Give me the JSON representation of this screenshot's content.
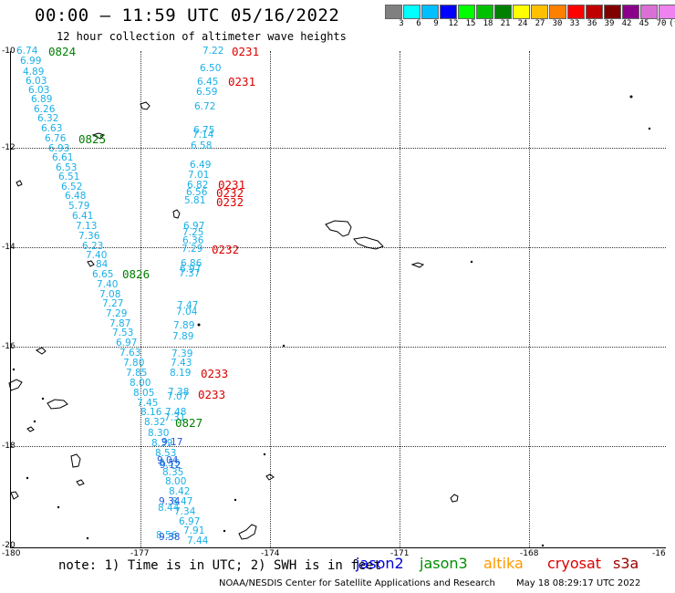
{
  "title": "00:00 – 11:59 UTC 05/16/2022",
  "subtitle": "12 hour collection of altimeter wave heights",
  "colorbar": {
    "colors": [
      "#808080",
      "#00ffff",
      "#00bfff",
      "#0000ff",
      "#00ff00",
      "#00c000",
      "#008000",
      "#ffff00",
      "#ffc000",
      "#ff8000",
      "#ff0000",
      "#c00000",
      "#800000",
      "#8b008b",
      "#da70d6",
      "#ee82ee",
      "#000000"
    ],
    "labels": [
      "3",
      "6",
      "9",
      "12",
      "15",
      "18",
      "21",
      "24",
      "27",
      "30",
      "33",
      "36",
      "39",
      "42",
      "45",
      "70",
      "(ft)"
    ]
  },
  "axes": {
    "lon_ticks": [
      "-180",
      "-177",
      "-174",
      "-171",
      "-168",
      "-16"
    ],
    "lat_ticks": [
      "-10",
      "-12",
      "-14",
      "-16",
      "-18",
      "-20"
    ]
  },
  "observations": [
    {
      "text": "6.74",
      "color": "#1ab0e8"
    },
    {
      "text": "6.99",
      "color": "#1ab0e8"
    },
    {
      "text": "4.89",
      "color": "#1ab0e8"
    },
    {
      "text": "6.03",
      "color": "#1ab0e8"
    },
    {
      "text": "6.03",
      "color": "#1ab0e8"
    },
    {
      "text": "6.89",
      "color": "#1ab0e8"
    },
    {
      "text": "6.26",
      "color": "#1ab0e8"
    },
    {
      "text": "6.32",
      "color": "#1ab0e8"
    },
    {
      "text": "6.63",
      "color": "#1ab0e8"
    },
    {
      "text": "6.76",
      "color": "#1ab0e8"
    },
    {
      "text": "6.93",
      "color": "#1ab0e8"
    },
    {
      "text": "6.61",
      "color": "#1ab0e8"
    },
    {
      "text": "6.53",
      "color": "#1ab0e8"
    },
    {
      "text": "6.51",
      "color": "#1ab0e8"
    },
    {
      "text": "6.52",
      "color": "#1ab0e8"
    },
    {
      "text": "6.48",
      "color": "#1ab0e8"
    },
    {
      "text": "5.79",
      "color": "#1ab0e8"
    },
    {
      "text": "6.41",
      "color": "#1ab0e8"
    },
    {
      "text": "7.13",
      "color": "#1ab0e8"
    },
    {
      "text": "7.36",
      "color": "#1ab0e8"
    },
    {
      "text": "6.23",
      "color": "#1ab0e8"
    },
    {
      "text": "7.40",
      "color": "#1ab0e8"
    },
    {
      "text": "84",
      "color": "#1ab0e8"
    },
    {
      "text": "6.65",
      "color": "#1ab0e8"
    },
    {
      "text": "7.40",
      "color": "#1ab0e8"
    },
    {
      "text": "7.08",
      "color": "#1ab0e8"
    },
    {
      "text": "7.27",
      "color": "#1ab0e8"
    },
    {
      "text": "7.29",
      "color": "#1ab0e8"
    },
    {
      "text": "7.87",
      "color": "#1ab0e8"
    },
    {
      "text": "7.53",
      "color": "#1ab0e8"
    },
    {
      "text": "6.97",
      "color": "#1ab0e8"
    },
    {
      "text": "7.63",
      "color": "#1ab0e8"
    },
    {
      "text": "7.80",
      "color": "#1ab0e8"
    },
    {
      "text": "7.85",
      "color": "#1ab0e8"
    },
    {
      "text": "8.00",
      "color": "#1ab0e8"
    },
    {
      "text": "8.05",
      "color": "#1ab0e8"
    },
    {
      "text": "7.45",
      "color": "#1ab0e8"
    },
    {
      "text": "8.16",
      "color": "#1ab0e8"
    },
    {
      "text": "8.32",
      "color": "#1ab0e8"
    },
    {
      "text": "8.30",
      "color": "#1ab0e8"
    },
    {
      "text": "8.39",
      "color": "#1ab0e8"
    },
    {
      "text": "8.53",
      "color": "#1ab0e8"
    },
    {
      "text": "8.55",
      "color": "#1ab0e8"
    },
    {
      "text": "8.00",
      "color": "#1ab0e8"
    },
    {
      "text": "8.42",
      "color": "#1ab0e8"
    },
    {
      "text": "8.47",
      "color": "#1ab0e8"
    },
    {
      "text": "7.34",
      "color": "#1ab0e8"
    },
    {
      "text": "6.97",
      "color": "#1ab0e8"
    },
    {
      "text": "7.91",
      "color": "#1ab0e8"
    },
    {
      "text": "7.44",
      "color": "#1ab0e8"
    },
    {
      "text": "7.22",
      "color": "#1ab0e8"
    },
    {
      "text": "6.50",
      "color": "#1ab0e8"
    },
    {
      "text": "6.45",
      "color": "#1ab0e8"
    },
    {
      "text": "6.59",
      "color": "#1ab0e8"
    },
    {
      "text": "6.72",
      "color": "#1ab0e8"
    },
    {
      "text": "6.75",
      "color": "#1ab0e8"
    },
    {
      "text": "7.14",
      "color": "#1ab0e8"
    },
    {
      "text": "6.58",
      "color": "#1ab0e8"
    },
    {
      "text": "6.49",
      "color": "#1ab0e8"
    },
    {
      "text": "7.01",
      "color": "#1ab0e8"
    },
    {
      "text": "6.82",
      "color": "#1ab0e8"
    },
    {
      "text": "6.56",
      "color": "#1ab0e8"
    },
    {
      "text": "5.81",
      "color": "#1ab0e8"
    },
    {
      "text": "6.97",
      "color": "#1ab0e8"
    },
    {
      "text": "7.25",
      "color": "#1ab0e8"
    },
    {
      "text": "6.36",
      "color": "#1ab0e8"
    },
    {
      "text": "7.29",
      "color": "#1ab0e8"
    },
    {
      "text": "6.86",
      "color": "#1ab0e8"
    },
    {
      "text": "6.97",
      "color": "#1ab0e8"
    },
    {
      "text": "7.37",
      "color": "#1ab0e8"
    },
    {
      "text": "7.47",
      "color": "#1ab0e8"
    },
    {
      "text": "7.04",
      "color": "#1ab0e8"
    },
    {
      "text": "7.89",
      "color": "#1ab0e8"
    },
    {
      "text": "7.89",
      "color": "#1ab0e8"
    },
    {
      "text": "7.39",
      "color": "#1ab0e8"
    },
    {
      "text": "7.43",
      "color": "#1ab0e8"
    },
    {
      "text": "8.19",
      "color": "#1ab0e8"
    },
    {
      "text": "7.38",
      "color": "#1ab0e8"
    },
    {
      "text": "7.07",
      "color": "#1ab0e8"
    },
    {
      "text": "7.48",
      "color": "#1ab0e8"
    },
    {
      "text": "7.31",
      "color": "#1ab0e8"
    },
    {
      "text": "9.17",
      "color": "#2255dd"
    },
    {
      "text": "9.04",
      "color": "#2255dd"
    },
    {
      "text": "9.12",
      "color": "#2255dd"
    },
    {
      "text": "8.35",
      "color": "#1ab0e8"
    },
    {
      "text": "9.34",
      "color": "#2255dd"
    },
    {
      "text": "8.44",
      "color": "#1ab0e8"
    },
    {
      "text": "8.56",
      "color": "#1ab0e8"
    },
    {
      "text": "9.38",
      "color": "#2255dd"
    }
  ],
  "passes": [
    {
      "text": "0824",
      "color": "#008000"
    },
    {
      "text": "0825",
      "color": "#008000"
    },
    {
      "text": "0826",
      "color": "#008000"
    },
    {
      "text": "0827",
      "color": "#008000"
    },
    {
      "text": "0231",
      "color": "#dd0000"
    },
    {
      "text": "0231",
      "color": "#dd0000"
    },
    {
      "text": "0231",
      "color": "#dd0000"
    },
    {
      "text": "0232",
      "color": "#dd0000"
    },
    {
      "text": "0232",
      "color": "#dd0000"
    },
    {
      "text": "0232",
      "color": "#dd0000"
    },
    {
      "text": "0233",
      "color": "#dd0000"
    },
    {
      "text": "0233",
      "color": "#dd0000"
    }
  ],
  "note": "note: 1) Time is in UTC; 2) SWH is in feet",
  "legend": [
    {
      "label": "jason2",
      "color": "#0000dd"
    },
    {
      "label": "jason3",
      "color": "#009000"
    },
    {
      "label": "altika",
      "color": "#ff9900"
    },
    {
      "label": "cryosat",
      "color": "#dd0000"
    },
    {
      "label": "s3a",
      "color": "#990000"
    }
  ],
  "credit": "NOAA/NESDIS Center for Satellite Applications and Research",
  "timestamp": "May 18 08:29:17 UTC 2022"
}
